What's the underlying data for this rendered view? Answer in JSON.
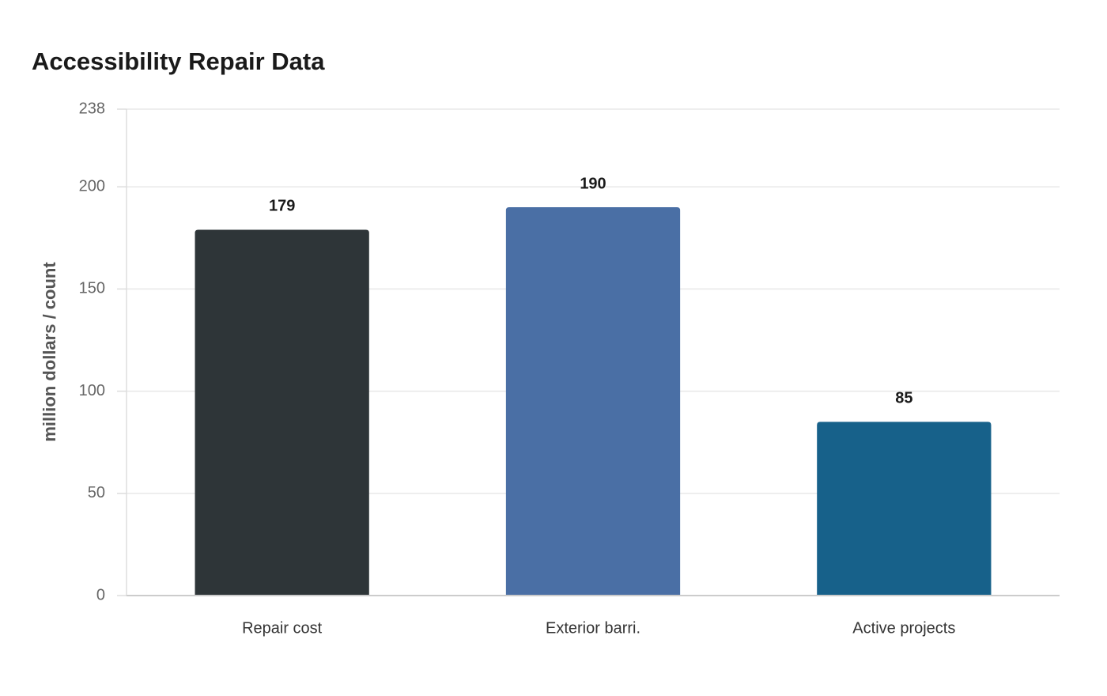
{
  "chart_data": {
    "type": "bar",
    "title": "Accessibility Repair Data",
    "y_label": "million dollars / count",
    "categories": [
      "Repair cost",
      "Exterior barri.",
      "Active projects"
    ],
    "values": [
      179,
      190,
      85
    ],
    "colors": [
      "#2e3538",
      "#4a6fa5",
      "#17618a"
    ],
    "ylim": [
      0,
      238
    ],
    "yticks": [
      0,
      50,
      100,
      150,
      200,
      238
    ],
    "grid": true
  }
}
